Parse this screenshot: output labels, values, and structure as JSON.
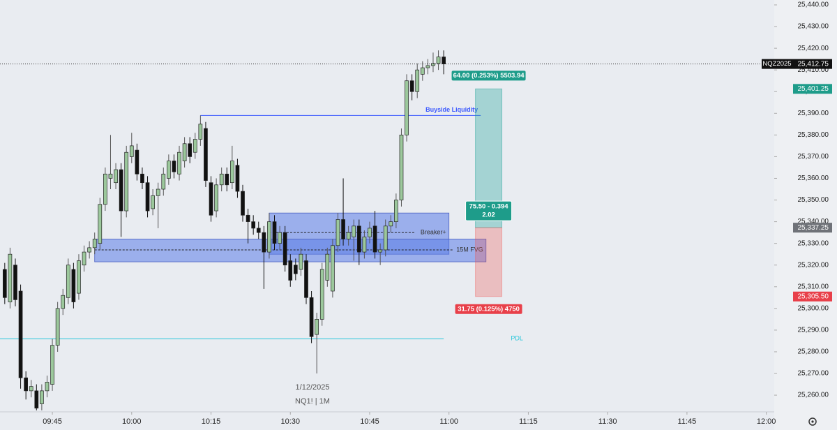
{
  "chart_data": {
    "type": "candlestick",
    "symbol": "NQZ2025",
    "date_label": "1/12/2025",
    "subtitle": "NQ1! | 1M",
    "up_color": "#9cc89c",
    "down_color": "#111111",
    "xlim": [
      575.1,
      721.5
    ],
    "xticks": [
      {
        "value": 585,
        "label": "09:45"
      },
      {
        "value": 600,
        "label": "10:00"
      },
      {
        "value": 615,
        "label": "10:15"
      },
      {
        "value": 630,
        "label": "10:30"
      },
      {
        "value": 645,
        "label": "10:45"
      },
      {
        "value": 660,
        "label": "11:00"
      },
      {
        "value": 675,
        "label": "11:15"
      },
      {
        "value": 690,
        "label": "11:30"
      },
      {
        "value": 705,
        "label": "11:45"
      },
      {
        "value": 720,
        "label": "12:00"
      }
    ],
    "ylim": [
      25252.3,
      25442.25
    ],
    "yticks": [
      {
        "value": 25260,
        "label": "25,260.00"
      },
      {
        "value": 25270,
        "label": "25,270.00"
      },
      {
        "value": 25280,
        "label": "25,280.00"
      },
      {
        "value": 25290,
        "label": "25,290.00"
      },
      {
        "value": 25300,
        "label": "25,300.00"
      },
      {
        "value": 25310,
        "label": "25,310.00"
      },
      {
        "value": 25320,
        "label": "25,320.00"
      },
      {
        "value": 25330,
        "label": "25,330.00"
      },
      {
        "value": 25340,
        "label": "25,340.00"
      },
      {
        "value": 25350,
        "label": "25,350.00"
      },
      {
        "value": 25360,
        "label": "25,360.00"
      },
      {
        "value": 25370,
        "label": "25,370.00"
      },
      {
        "value": 25380,
        "label": "25,380.00"
      },
      {
        "value": 25390,
        "label": "25,390.00"
      },
      {
        "value": 25400,
        "label": "25,400.00"
      },
      {
        "value": 25410,
        "label": "25,410.00"
      },
      {
        "value": 25420,
        "label": "25,420.00"
      },
      {
        "value": 25430,
        "label": "25,430.00"
      },
      {
        "value": 25440,
        "label": "25,440.00"
      }
    ],
    "x": [
      576,
      577,
      578,
      579,
      580,
      581,
      582,
      583,
      584,
      585,
      586,
      587,
      588,
      589,
      590,
      591,
      592,
      593,
      594,
      595,
      596,
      597,
      598,
      599,
      600,
      601,
      602,
      603,
      604,
      605,
      606,
      607,
      608,
      609,
      610,
      611,
      612,
      613,
      614,
      615,
      616,
      617,
      618,
      619,
      620,
      621,
      622,
      623,
      624,
      625,
      626,
      627,
      628,
      629,
      630,
      631,
      632,
      633,
      634,
      635,
      636,
      637,
      638,
      639,
      640,
      641,
      642,
      643,
      644,
      645,
      646,
      647,
      648,
      649,
      650,
      651,
      652,
      653,
      654,
      655,
      656,
      657,
      658,
      659
    ],
    "open": [
      25318,
      25303,
      25320,
      25308,
      25268,
      25262,
      25262,
      25256,
      25262,
      25265,
      25283,
      25300,
      25305,
      25318,
      25307,
      25320,
      25326,
      25328,
      25330,
      25348,
      25360,
      25358,
      25364,
      25345,
      25370,
      25373,
      25362,
      25358,
      25346,
      25352,
      25355,
      25360,
      25368,
      25362,
      25368,
      25376,
      25372,
      25378,
      25383,
      25358,
      25345,
      25357,
      25362,
      25358,
      25366,
      25354,
      25343,
      25340,
      25337,
      25335,
      25326,
      25340,
      25330,
      25335,
      25322,
      25320,
      25318,
      25322,
      25305,
      25288,
      25295,
      25313,
      25308,
      25329,
      25341,
      25332,
      25333,
      25338,
      25326,
      25333,
      25338,
      25326,
      25327,
      25338,
      25340,
      25350,
      25380,
      25405,
      25400,
      25408,
      25411,
      25412,
      25413,
      25416
    ],
    "high": [
      25321,
      25328,
      25323,
      25311,
      25271,
      25267,
      25265,
      25265,
      25269,
      25286,
      25303,
      25309,
      25323,
      25321,
      25325,
      25329,
      25331,
      25335,
      25351,
      25365,
      25380,
      25367,
      25367,
      25375,
      25381,
      25376,
      25365,
      25361,
      25355,
      25358,
      25365,
      25371,
      25371,
      25375,
      25379,
      25379,
      25381,
      25389,
      25386,
      25361,
      25360,
      25365,
      25365,
      25375,
      25369,
      25357,
      25346,
      25343,
      25340,
      25338,
      25344,
      25343,
      25338,
      25338,
      25325,
      25323,
      25328,
      25325,
      25308,
      25298,
      25321,
      25328,
      25332,
      25344,
      25360,
      25338,
      25341,
      25341,
      25336,
      25340,
      25345,
      25330,
      25341,
      25343,
      25353,
      25383,
      25408,
      25408,
      25413,
      25414,
      25415,
      25418,
      25419,
      25419
    ],
    "low": [
      25302,
      25300,
      25301,
      25263,
      25258,
      25259,
      25253,
      25253,
      25259,
      25262,
      25280,
      25297,
      25302,
      25300,
      25304,
      25317,
      25323,
      25325,
      25327,
      25345,
      25355,
      25355,
      25333,
      25342,
      25367,
      25359,
      25355,
      25342,
      25343,
      25337,
      25352,
      25357,
      25360,
      25359,
      25365,
      25367,
      25369,
      25375,
      25356,
      25340,
      25342,
      25354,
      25354,
      25355,
      25351,
      25340,
      25330,
      25334,
      25332,
      25309,
      25323,
      25327,
      25327,
      25317,
      25310,
      25313,
      25315,
      25302,
      25284,
      25270,
      25292,
      25310,
      25305,
      25326,
      25329,
      25329,
      25322,
      25320,
      25323,
      25330,
      25323,
      25320,
      25324,
      25335,
      25337,
      25347,
      25377,
      25396,
      25397,
      25405,
      25408,
      25409,
      25410,
      25408
    ],
    "close": [
      25305,
      25325,
      25304,
      25268,
      25262,
      25264,
      25254,
      25262,
      25266,
      25283,
      25300,
      25306,
      25320,
      25303,
      25322,
      25326,
      25328,
      25332,
      25348,
      25362,
      25362,
      25364,
      25345,
      25372,
      25375,
      25362,
      25358,
      25345,
      25352,
      25355,
      25362,
      25368,
      25363,
      25372,
      25376,
      25370,
      25378,
      25385,
      25359,
      25343,
      25357,
      25362,
      25357,
      25368,
      25354,
      25343,
      25340,
      25337,
      25335,
      25326,
      25340,
      25330,
      25335,
      25320,
      25313,
      25316,
      25325,
      25305,
      25287,
      25295,
      25318,
      25325,
      25329,
      25341,
      25332,
      25335,
      25338,
      25326,
      25333,
      25337,
      25326,
      25327,
      25338,
      25340,
      25350,
      25380,
      25405,
      25400,
      25410,
      25411,
      25412,
      25413,
      25416,
      25412.75
    ],
    "last_price": {
      "value": 25412.75,
      "label": "25,412.75"
    },
    "levels": [
      {
        "label": "Buyside Liquidity",
        "value": 25389,
        "x": [
          613,
          666
        ],
        "color": "#3d5afe"
      },
      {
        "label": "PDL",
        "value": 25286,
        "x": [
          575.1,
          659
        ],
        "color": "#26c6da"
      }
    ],
    "zones": [
      {
        "label": "Breaker+",
        "top": 25344,
        "bottom": 25325,
        "mid": 25335,
        "x": [
          626,
          660
        ],
        "color": "#5b7de8"
      },
      {
        "label": "15M FVG",
        "top": 25332,
        "bottom": 25321.5,
        "mid": 25327,
        "x": [
          593,
          667
        ],
        "color": "#5b7de8"
      }
    ],
    "position": {
      "x": [
        665,
        670
      ],
      "entry": {
        "value": 25337.25,
        "label": "25,337.25"
      },
      "target": {
        "value": 25401.25,
        "label": "25,401.25"
      },
      "stop": {
        "value": 25305.5,
        "label": "25,305.50"
      },
      "target_text": "64.00 (0.253%) 5503.94",
      "ratio_text": "75.50 - 0.394",
      "rr_text": "2.02",
      "stop_text": "31.75 (0.125%) 4750"
    }
  }
}
